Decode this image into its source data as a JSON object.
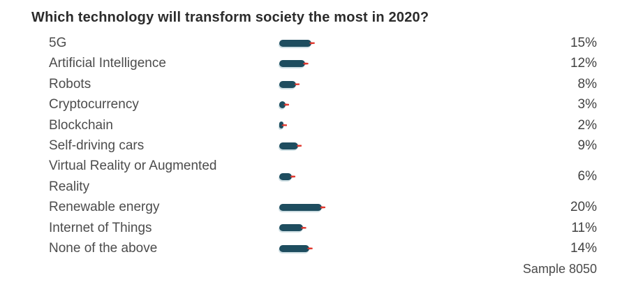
{
  "page": {
    "title": "Which technology will transform society the most in 2020?",
    "sample_note": "Sample 8050"
  },
  "colors": {
    "bar": "#1e4d5f",
    "marker": "#e0392f",
    "title_text": "#2b2b2b",
    "label_text": "#4c4c4c",
    "value_text": "#424242"
  },
  "chart_data": {
    "type": "bar",
    "orientation": "horizontal",
    "title": "Which technology will transform society the most in 2020?",
    "categories": [
      "5G",
      "Artificial Intelligence",
      "Robots",
      "Cryptocurrency",
      "Blockchain",
      "Self-driving cars",
      "Virtual Reality or Augmented Reality",
      "Renewable energy",
      "Internet of Things",
      "None of the above"
    ],
    "values": [
      15,
      12,
      8,
      3,
      2,
      9,
      6,
      20,
      11,
      14
    ],
    "value_labels": [
      "15%",
      "12%",
      "8%",
      "3%",
      "2%",
      "9%",
      "6%",
      "20%",
      "11%",
      "14%"
    ],
    "value_suffix": "%",
    "xlim": [
      0,
      20
    ],
    "grid": false,
    "legend": null,
    "bar_style": "rounded-pill-with-red-target-marker",
    "annotations": [
      "Sample 8050"
    ]
  }
}
